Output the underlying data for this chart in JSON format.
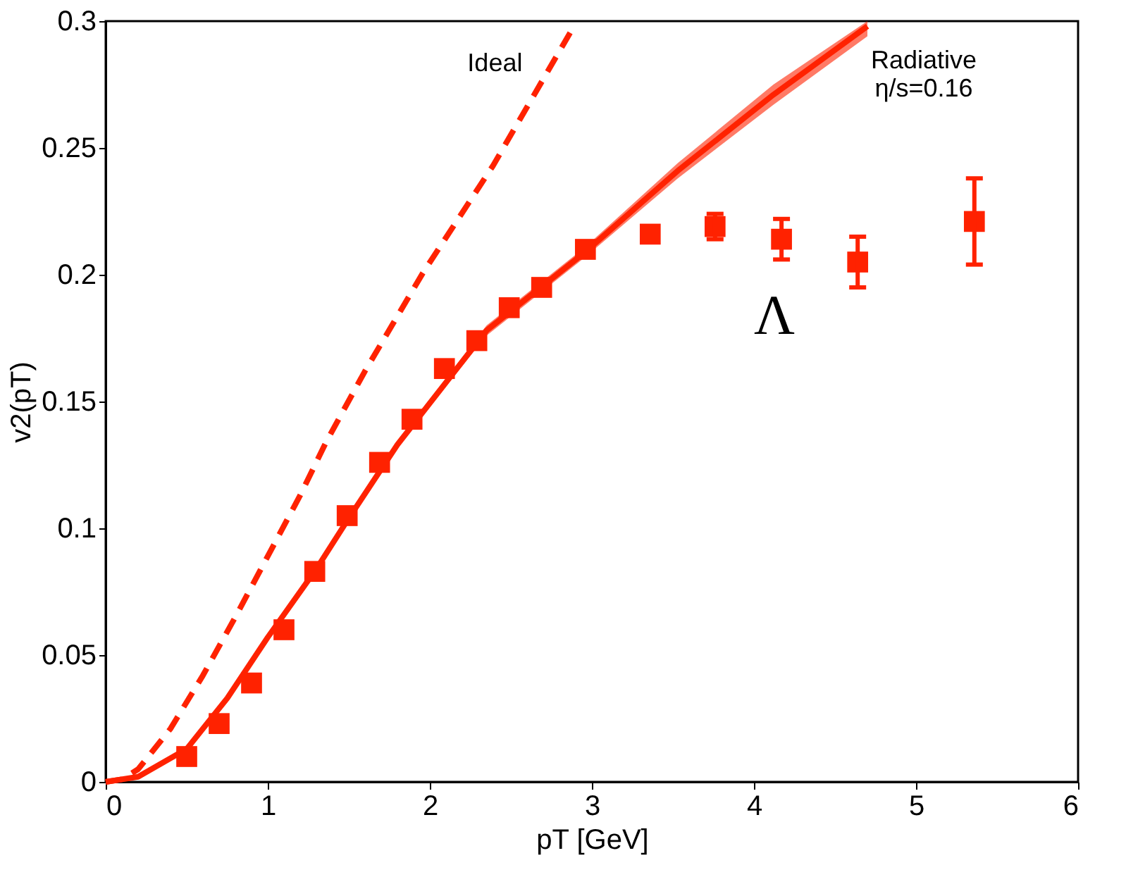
{
  "chart_data": {
    "type": "line",
    "annotations": [
      "Λ"
    ],
    "xlabel": "pT [GeV]",
    "ylabel": "v2(pT)",
    "xlim": [
      0,
      6
    ],
    "xticks": [
      0,
      1,
      2,
      3,
      4,
      5,
      6
    ],
    "ylim": [
      0,
      0.3
    ],
    "yticks": [
      0,
      0.05,
      0.1,
      0.15,
      0.2,
      0.25,
      0.3
    ],
    "grid": false,
    "series": [
      {
        "name": "Ideal",
        "type": "line",
        "line_style": "dashed",
        "color": "#ff2200",
        "x": [
          0,
          0.1,
          0.2,
          0.4,
          0.6,
          0.8,
          1.0,
          1.2,
          1.36,
          1.6,
          1.96,
          2.39,
          2.88
        ],
        "values": [
          0,
          0.001,
          0.005,
          0.021,
          0.042,
          0.065,
          0.089,
          0.113,
          0.134,
          0.162,
          0.201,
          0.243,
          0.297
        ]
      },
      {
        "name": "Radiative\nη/s=0.16",
        "type": "line",
        "line_style": "solid",
        "color": "#ff2200",
        "x": [
          0,
          0.2,
          0.5,
          0.75,
          1.0,
          1.3,
          1.5,
          1.8,
          2.35,
          2.96,
          3.53,
          4.12,
          4.7
        ],
        "values": [
          0,
          0.002,
          0.013,
          0.033,
          0.057,
          0.084,
          0.104,
          0.133,
          0.178,
          0.209,
          0.241,
          0.271,
          0.298
        ],
        "lower": [
          0,
          0.002,
          0.013,
          0.033,
          0.056,
          0.083,
          0.103,
          0.132,
          0.176,
          0.207,
          0.238,
          0.267,
          0.294
        ],
        "upper": [
          0,
          0.002,
          0.013,
          0.033,
          0.058,
          0.085,
          0.105,
          0.134,
          0.18,
          0.211,
          0.244,
          0.275,
          0.3
        ]
      },
      {
        "type": "scatter",
        "marker": "square",
        "color": "#ff2200",
        "x": [
          0.5,
          0.7,
          0.9,
          1.1,
          1.29,
          1.49,
          1.69,
          1.89,
          2.09,
          2.29,
          2.49,
          2.69,
          2.96,
          3.36,
          3.76,
          4.17,
          4.64,
          5.36
        ],
        "values": [
          0.01,
          0.023,
          0.039,
          0.06,
          0.083,
          0.105,
          0.126,
          0.143,
          0.163,
          0.174,
          0.187,
          0.195,
          0.21,
          0.216,
          0.219,
          0.214,
          0.205,
          0.221
        ],
        "errors": [
          null,
          null,
          null,
          null,
          null,
          null,
          null,
          null,
          null,
          null,
          null,
          null,
          null,
          null,
          0.005,
          0.008,
          0.01,
          0.017
        ]
      }
    ]
  }
}
